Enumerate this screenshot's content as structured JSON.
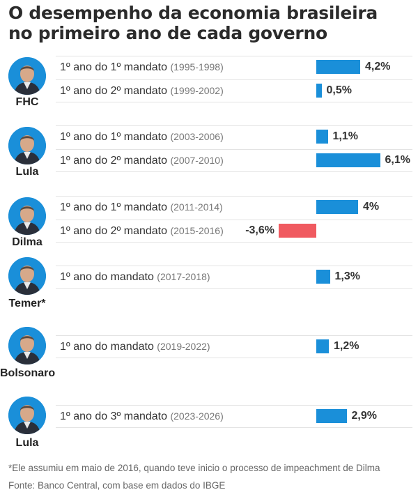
{
  "title": {
    "line1": "O desempenho da economia brasileira",
    "line2": "no primeiro ano de cada governo"
  },
  "colors": {
    "positive": "#1a8fd9",
    "negative": "#f05a60"
  },
  "chart_data": {
    "type": "bar",
    "orientation": "horizontal",
    "value_unit": "%",
    "groups": [
      {
        "president": "FHC",
        "rows": [
          {
            "label": "1º ano do 1º mandato",
            "period": "(1995-1998)",
            "value": 4.2,
            "value_label": "4,2%"
          },
          {
            "label": "1º ano do 2º mandato",
            "period": "(1999-2002)",
            "value": 0.5,
            "value_label": "0,5%"
          }
        ]
      },
      {
        "president": "Lula",
        "rows": [
          {
            "label": "1º ano do 1º mandato",
            "period": "(2003-2006)",
            "value": 1.1,
            "value_label": "1,1%"
          },
          {
            "label": "1º ano do 2º mandato",
            "period": "(2007-2010)",
            "value": 6.1,
            "value_label": "6,1%"
          }
        ]
      },
      {
        "president": "Dilma",
        "rows": [
          {
            "label": "1º ano do 1º mandato",
            "period": "(2011-2014)",
            "value": 4.0,
            "value_label": "4%"
          },
          {
            "label": "1º ano do 2º mandato",
            "period": "(2015-2016)",
            "value": -3.6,
            "value_label": "-3,6%"
          }
        ]
      },
      {
        "president": "Temer*",
        "rows": [
          {
            "label": "1º ano do mandato",
            "period": "(2017-2018)",
            "value": 1.3,
            "value_label": "1,3%"
          }
        ]
      },
      {
        "president": "Bolsonaro",
        "rows": [
          {
            "label": "1º ano do mandato",
            "period": "(2019-2022)",
            "value": 1.2,
            "value_label": "1,2%"
          }
        ]
      },
      {
        "president": "Lula",
        "rows": [
          {
            "label": "1º ano do 3º mandato",
            "period": "(2023-2026)",
            "value": 2.9,
            "value_label": "2,9%"
          }
        ]
      }
    ]
  },
  "footnote": "*Ele assumiu em maio de 2016, quando teve inicio o processo de impeachment de Dilma",
  "source": "Fonte: Banco Central, com base em dados do IBGE"
}
